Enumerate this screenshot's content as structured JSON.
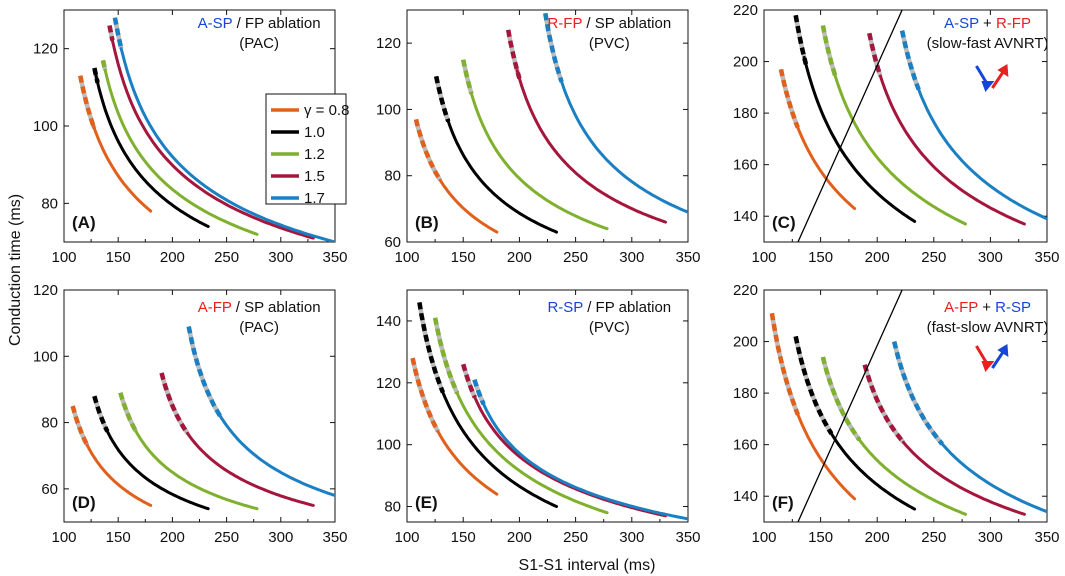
{
  "xlabel": "S1-S1 interval (ms)",
  "ylabel": "Conduction time (ms)",
  "legend": {
    "entries": [
      {
        "label": "γ = 0.8",
        "color": "#e0601c"
      },
      {
        "label": "1.0",
        "color": "#000000"
      },
      {
        "label": "1.2",
        "color": "#7fb02e"
      },
      {
        "label": "1.5",
        "color": "#a5163d"
      },
      {
        "label": "1.7",
        "color": "#1b7fc3"
      }
    ]
  },
  "arrows": {
    "blue": "#1646d8",
    "red": "#e82020"
  },
  "chart_data": [
    {
      "type": "line",
      "panel": "(A)",
      "xlim": [
        100,
        350
      ],
      "ylim": [
        70,
        130
      ],
      "xticks": [
        "100",
        "150",
        "200",
        "250",
        "300",
        "350"
      ],
      "yticks": [
        "80",
        "100",
        "120"
      ],
      "yticks_values": [
        80,
        100,
        120
      ],
      "annotation": [
        [
          {
            "text": "A-SP",
            "color": "#1646d8"
          },
          {
            "text": " / FP ablation",
            "color": "#111111"
          }
        ],
        [
          {
            "text": "(PAC)",
            "color": "#111111"
          }
        ]
      ],
      "series": [
        {
          "gamma": "0.8",
          "color": "#e0601c",
          "x0": 115,
          "x1": 180,
          "y0": 113,
          "y1": 78,
          "dash_until": 128
        },
        {
          "gamma": "1.0",
          "color": "#000000",
          "x0": 128,
          "x1": 233,
          "y0": 115,
          "y1": 74,
          "dash_until": 131
        },
        {
          "gamma": "1.2",
          "color": "#7fb02e",
          "x0": 136,
          "x1": 278,
          "y0": 117,
          "y1": 72,
          "dash_until": 139
        },
        {
          "gamma": "1.5",
          "color": "#a5163d",
          "x0": 142,
          "x1": 330,
          "y0": 126,
          "y1": 71,
          "dash_until": 145
        },
        {
          "gamma": "1.7",
          "color": "#1b7fc3",
          "x0": 147,
          "x1": 350,
          "y0": 128,
          "y1": 70,
          "dash_until": 155
        }
      ]
    },
    {
      "type": "line",
      "panel": "(B)",
      "xlim": [
        100,
        350
      ],
      "ylim": [
        60,
        130
      ],
      "xticks": [
        "100",
        "150",
        "200",
        "250",
        "300",
        "350"
      ],
      "yticks": [
        "60",
        "80",
        "100",
        "120"
      ],
      "yticks_values": [
        60,
        80,
        100,
        120
      ],
      "annotation": [
        [
          {
            "text": "R-FP",
            "color": "#e82020"
          },
          {
            "text": " / SP ablation",
            "color": "#111111"
          }
        ],
        [
          {
            "text": "(PVC)",
            "color": "#111111"
          }
        ]
      ],
      "series": [
        {
          "gamma": "0.8",
          "color": "#e0601c",
          "x0": 108,
          "x1": 180,
          "y0": 97,
          "y1": 63,
          "dash_until": 130
        },
        {
          "gamma": "1.0",
          "color": "#000000",
          "x0": 126,
          "x1": 233,
          "y0": 110,
          "y1": 63,
          "dash_until": 137
        },
        {
          "gamma": "1.2",
          "color": "#7fb02e",
          "x0": 150,
          "x1": 278,
          "y0": 115,
          "y1": 64,
          "dash_until": 158
        },
        {
          "gamma": "1.5",
          "color": "#a5163d",
          "x0": 190,
          "x1": 330,
          "y0": 124,
          "y1": 66,
          "dash_until": 200
        },
        {
          "gamma": "1.7",
          "color": "#1b7fc3",
          "x0": 223,
          "x1": 350,
          "y0": 129,
          "y1": 69,
          "dash_until": 238
        }
      ]
    },
    {
      "type": "line",
      "panel": "(C)",
      "xlim": [
        100,
        350
      ],
      "ylim": [
        130,
        220
      ],
      "xticks": [
        "100",
        "150",
        "200",
        "250",
        "300",
        "350"
      ],
      "yticks": [
        "140",
        "160",
        "180",
        "200",
        "220"
      ],
      "yticks_values": [
        140,
        160,
        180,
        200,
        220
      ],
      "annotation": [
        [
          {
            "text": "A-SP",
            "color": "#1646d8"
          },
          {
            "text": " + ",
            "color": "#111111"
          },
          {
            "text": "R-FP",
            "color": "#e82020"
          }
        ],
        [
          {
            "text": "(slow-fast AVNRT)",
            "color": "#111111"
          }
        ]
      ],
      "diagonal": [
        [
          130,
          130
        ],
        [
          222,
          220
        ]
      ],
      "series": [
        {
          "gamma": "0.8",
          "color": "#e0601c",
          "x0": 115,
          "x1": 180,
          "y0": 197,
          "y1": 143,
          "dash_until": 130
        },
        {
          "gamma": "1.0",
          "color": "#000000",
          "x0": 128,
          "x1": 233,
          "y0": 218,
          "y1": 138,
          "dash_until": 137
        },
        {
          "gamma": "1.2",
          "color": "#7fb02e",
          "x0": 152,
          "x1": 278,
          "y0": 214,
          "y1": 137,
          "dash_until": 163
        },
        {
          "gamma": "1.5",
          "color": "#a5163d",
          "x0": 193,
          "x1": 330,
          "y0": 211,
          "y1": 137,
          "dash_until": 203
        },
        {
          "gamma": "1.7",
          "color": "#1b7fc3",
          "x0": 222,
          "x1": 350,
          "y0": 212,
          "y1": 139,
          "dash_until": 237
        }
      ]
    },
    {
      "type": "line",
      "panel": "(D)",
      "xlim": [
        100,
        350
      ],
      "ylim": [
        50,
        120
      ],
      "xticks": [
        "100",
        "150",
        "200",
        "250",
        "300",
        "350"
      ],
      "yticks": [
        "60",
        "80",
        "100",
        "120"
      ],
      "yticks_values": [
        60,
        80,
        100,
        120
      ],
      "annotation": [
        [
          {
            "text": "A-FP",
            "color": "#e82020"
          },
          {
            "text": " / SP ablation",
            "color": "#111111"
          }
        ],
        [
          {
            "text": "(PAC)",
            "color": "#111111"
          }
        ]
      ],
      "series": [
        {
          "gamma": "0.8",
          "color": "#e0601c",
          "x0": 108,
          "x1": 180,
          "y0": 85,
          "y1": 55,
          "dash_until": 122
        },
        {
          "gamma": "1.0",
          "color": "#000000",
          "x0": 128,
          "x1": 233,
          "y0": 88,
          "y1": 54,
          "dash_until": 140
        },
        {
          "gamma": "1.2",
          "color": "#7fb02e",
          "x0": 152,
          "x1": 278,
          "y0": 89,
          "y1": 54,
          "dash_until": 167
        },
        {
          "gamma": "1.5",
          "color": "#a5163d",
          "x0": 190,
          "x1": 330,
          "y0": 95,
          "y1": 55,
          "dash_until": 215
        },
        {
          "gamma": "1.7",
          "color": "#1b7fc3",
          "x0": 215,
          "x1": 350,
          "y0": 109,
          "y1": 58,
          "dash_until": 245
        }
      ]
    },
    {
      "type": "line",
      "panel": "(E)",
      "xlim": [
        100,
        350
      ],
      "ylim": [
        75,
        150
      ],
      "xticks": [
        "100",
        "150",
        "200",
        "250",
        "300",
        "350"
      ],
      "yticks": [
        "80",
        "100",
        "120",
        "140"
      ],
      "yticks_values": [
        80,
        100,
        120,
        140
      ],
      "annotation": [
        [
          {
            "text": "R-SP",
            "color": "#1646d8"
          },
          {
            "text": " / FP ablation",
            "color": "#111111"
          }
        ],
        [
          {
            "text": "(PVC)",
            "color": "#111111"
          }
        ]
      ],
      "series": [
        {
          "gamma": "0.8",
          "color": "#e0601c",
          "x0": 105,
          "x1": 180,
          "y0": 128,
          "y1": 84,
          "dash_until": 128
        },
        {
          "gamma": "1.0",
          "color": "#000000",
          "x0": 111,
          "x1": 233,
          "y0": 146,
          "y1": 80,
          "dash_until": 132
        },
        {
          "gamma": "1.2",
          "color": "#7fb02e",
          "x0": 125,
          "x1": 278,
          "y0": 141,
          "y1": 78,
          "dash_until": 145
        },
        {
          "gamma": "1.5",
          "color": "#a5163d",
          "x0": 150,
          "x1": 330,
          "y0": 126,
          "y1": 77,
          "dash_until": 162
        },
        {
          "gamma": "1.7",
          "color": "#1b7fc3",
          "x0": 160,
          "x1": 350,
          "y0": 121,
          "y1": 76,
          "dash_until": 170
        }
      ]
    },
    {
      "type": "line",
      "panel": "(F)",
      "xlim": [
        100,
        350
      ],
      "ylim": [
        130,
        220
      ],
      "xticks": [
        "100",
        "150",
        "200",
        "250",
        "300",
        "350"
      ],
      "yticks": [
        "140",
        "160",
        "180",
        "200",
        "220"
      ],
      "yticks_values": [
        140,
        160,
        180,
        200,
        220
      ],
      "annotation": [
        [
          {
            "text": "A-FP",
            "color": "#e82020"
          },
          {
            "text": " + ",
            "color": "#111111"
          },
          {
            "text": "R-SP",
            "color": "#1646d8"
          }
        ],
        [
          {
            "text": "(fast-slow AVNRT)",
            "color": "#111111"
          }
        ]
      ],
      "diagonal": [
        [
          130,
          130
        ],
        [
          222,
          220
        ]
      ],
      "series": [
        {
          "gamma": "0.8",
          "color": "#e0601c",
          "x0": 107,
          "x1": 180,
          "y0": 211,
          "y1": 139,
          "dash_until": 130
        },
        {
          "gamma": "1.0",
          "color": "#000000",
          "x0": 128,
          "x1": 233,
          "y0": 202,
          "y1": 135,
          "dash_until": 160
        },
        {
          "gamma": "1.2",
          "color": "#7fb02e",
          "x0": 152,
          "x1": 278,
          "y0": 194,
          "y1": 133,
          "dash_until": 185
        },
        {
          "gamma": "1.5",
          "color": "#a5163d",
          "x0": 189,
          "x1": 330,
          "y0": 191,
          "y1": 133,
          "dash_until": 225
        },
        {
          "gamma": "1.7",
          "color": "#1b7fc3",
          "x0": 215,
          "x1": 350,
          "y0": 200,
          "y1": 134,
          "dash_until": 258
        }
      ]
    }
  ]
}
